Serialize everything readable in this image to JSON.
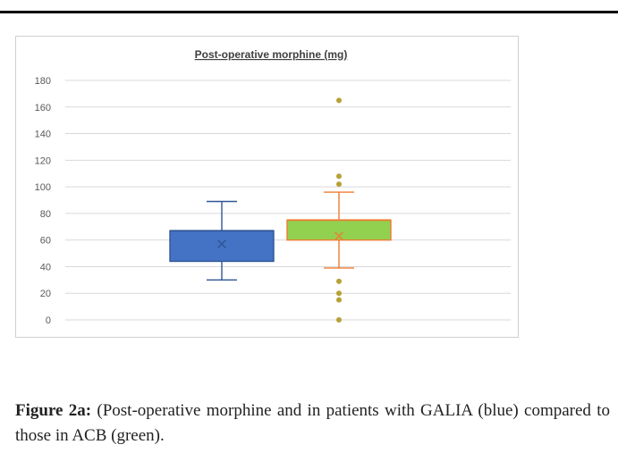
{
  "caption": {
    "label": "Figure 2a:",
    "text": "(Post-operative morphine and in patients with GALIA (blue) compared to those in ACB (green)."
  },
  "chart_data": {
    "type": "boxplot",
    "title": "Post-operative morphine (mg)",
    "xlabel": "",
    "ylabel": "",
    "ylim": [
      0,
      180
    ],
    "yticks": [
      0,
      20,
      40,
      60,
      80,
      100,
      120,
      140,
      160,
      180
    ],
    "grid": true,
    "legend": "none",
    "series": [
      {
        "group": "GALIA",
        "color": "#4472c4",
        "edge_color": "#2f5597",
        "whisker_low": 30,
        "q1": 44,
        "median": 67,
        "q3": 67,
        "whisker_high": 89,
        "mean": 57,
        "outliers": []
      },
      {
        "group": "ACB",
        "color": "#92d050",
        "edge_color": "#ed7d31",
        "whisker_low": 39,
        "q1": 60,
        "median": 75,
        "q3": 75,
        "whisker_high": 96,
        "mean": 63,
        "outliers": [
          0,
          15,
          20,
          29,
          102,
          108,
          165
        ]
      }
    ],
    "outlier_color": "#b8a036"
  }
}
